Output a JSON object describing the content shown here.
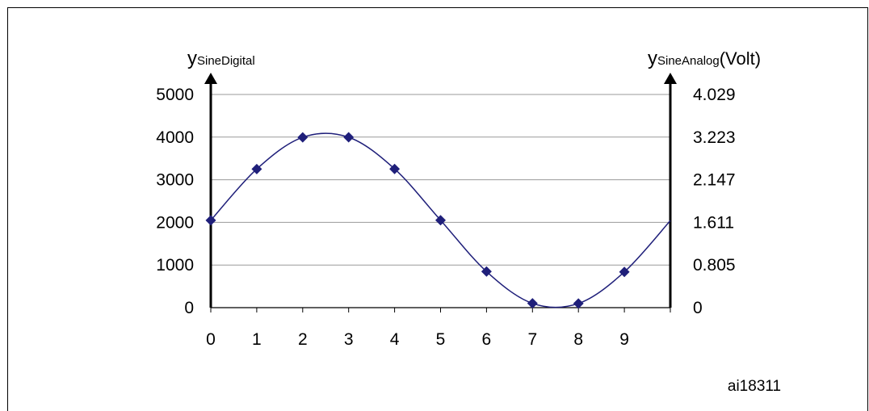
{
  "chart_data": {
    "type": "line",
    "x": [
      0,
      1,
      2,
      3,
      4,
      5,
      6,
      7,
      8,
      9,
      10
    ],
    "series": [
      {
        "values": [
          2048,
          3251,
          3995,
          3996,
          3253,
          2051,
          847,
          101,
          98,
          839,
          2040
        ]
      }
    ],
    "xlim": [
      0,
      10
    ],
    "ylim": [
      0,
      5000
    ],
    "x_tick_labels": [
      "0",
      "1",
      "2",
      "3",
      "4",
      "5",
      "6",
      "7",
      "8",
      "9"
    ],
    "y_left_ticks": [
      0,
      1000,
      2000,
      3000,
      4000,
      5000
    ],
    "y_right_tick_labels": [
      "0",
      "0.805",
      "1.611",
      "2.147",
      "3.223",
      "4.029"
    ],
    "ylabel_left": {
      "main": "y",
      "sub": "SineDigital"
    },
    "ylabel_right": {
      "main": "y",
      "sub": "SineAnalog",
      "unit": "(Volt)"
    },
    "grid": "horizontal",
    "marker": "diamond",
    "colors": {
      "series": "#1f1f7a",
      "grid": "#999999",
      "axis": "#000000"
    }
  },
  "figure_id": "ai18311"
}
